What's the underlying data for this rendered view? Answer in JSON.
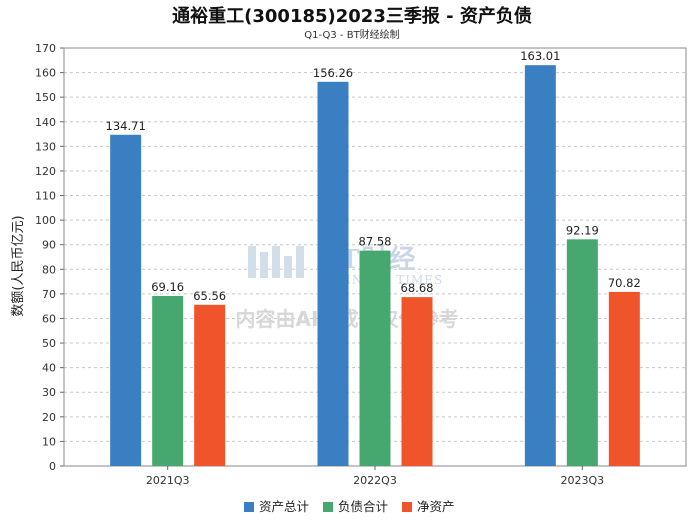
{
  "chart_data": {
    "type": "bar",
    "title": "通裕重工(300185)2023三季报 - 资产负债",
    "subtitle": "Q1-Q3 - BT财经绘制",
    "xlabel": "",
    "ylabel": "数额(人民币亿元)",
    "ylim": [
      0,
      170
    ],
    "yticks": [
      0,
      10,
      20,
      30,
      40,
      50,
      60,
      70,
      80,
      90,
      100,
      110,
      120,
      130,
      140,
      150,
      160,
      170
    ],
    "categories": [
      "2021Q3",
      "2022Q3",
      "2023Q3"
    ],
    "grid": true,
    "legend_position": "bottom",
    "series": [
      {
        "name": "资产总计",
        "color": "#3a7fc1",
        "values": [
          134.71,
          156.26,
          163.01
        ],
        "labels": [
          "134.71",
          "156.26",
          "163.01"
        ]
      },
      {
        "name": "负债合计",
        "color": "#46a86e",
        "values": [
          69.16,
          87.58,
          92.19
        ],
        "labels": [
          "69.16",
          "87.58",
          "92.19"
        ]
      },
      {
        "name": "净资产",
        "color": "#f0542a",
        "values": [
          65.56,
          68.68,
          70.82
        ],
        "labels": [
          "65.56",
          "68.68",
          "70.82"
        ]
      }
    ]
  },
  "watermark": {
    "brand": "BT财经",
    "brand_en": "BUSINESS TIMES",
    "notice": "内容由AI生成，仅供参考"
  }
}
